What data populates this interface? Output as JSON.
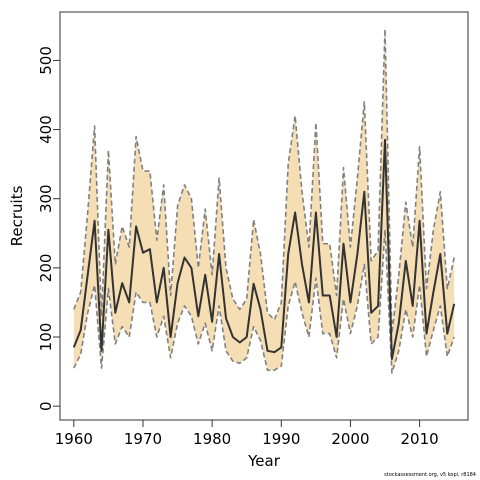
{
  "chart_data": {
    "type": "area",
    "xlabel": "Year",
    "ylabel": "Recruits",
    "xlim": [
      1958,
      2017
    ],
    "ylim": [
      -20,
      570
    ],
    "x_ticks": [
      1960,
      1970,
      1980,
      1990,
      2000,
      2010
    ],
    "y_ticks": [
      0,
      100,
      200,
      300,
      400,
      500
    ],
    "grid": false,
    "legend": "none",
    "colors": {
      "band": "#f5deb3",
      "bounds": "#808080",
      "estimate": "#333333"
    },
    "x": [
      1960,
      1961,
      1962,
      1963,
      1964,
      1965,
      1966,
      1967,
      1968,
      1969,
      1970,
      1971,
      1972,
      1973,
      1974,
      1975,
      1976,
      1977,
      1978,
      1979,
      1980,
      1981,
      1982,
      1983,
      1984,
      1985,
      1986,
      1987,
      1988,
      1989,
      1990,
      1991,
      1992,
      1993,
      1994,
      1995,
      1996,
      1997,
      1998,
      1999,
      2000,
      2001,
      2002,
      2003,
      2004,
      2005,
      2006,
      2007,
      2008,
      2009,
      2010,
      2011,
      2012,
      2013,
      2014,
      2015
    ],
    "series": [
      {
        "role": "estimate",
        "values": [
          85,
          110,
          190,
          268,
          80,
          255,
          135,
          178,
          150,
          260,
          222,
          227,
          150,
          200,
          100,
          178,
          215,
          200,
          130,
          190,
          122,
          220,
          127,
          100,
          92,
          100,
          177,
          140,
          80,
          78,
          85,
          220,
          280,
          205,
          150,
          280,
          160,
          160,
          100,
          235,
          150,
          220,
          310,
          135,
          145,
          385,
          68,
          120,
          210,
          145,
          268,
          105,
          165,
          220,
          105,
          148
        ]
      },
      {
        "role": "upper",
        "values": [
          140,
          165,
          280,
          405,
          130,
          370,
          205,
          260,
          230,
          390,
          340,
          340,
          240,
          320,
          160,
          290,
          320,
          300,
          200,
          285,
          190,
          330,
          200,
          155,
          140,
          155,
          270,
          220,
          135,
          125,
          150,
          350,
          420,
          310,
          230,
          410,
          235,
          235,
          160,
          345,
          230,
          330,
          440,
          210,
          225,
          545,
          105,
          190,
          295,
          230,
          375,
          170,
          255,
          310,
          170,
          215
        ]
      },
      {
        "role": "lower",
        "values": [
          55,
          75,
          135,
          175,
          55,
          170,
          90,
          115,
          100,
          165,
          150,
          150,
          100,
          130,
          70,
          120,
          145,
          130,
          90,
          120,
          80,
          145,
          80,
          65,
          62,
          70,
          115,
          95,
          52,
          52,
          58,
          145,
          180,
          135,
          100,
          185,
          105,
          105,
          70,
          155,
          105,
          145,
          205,
          90,
          100,
          255,
          48,
          80,
          140,
          100,
          175,
          72,
          110,
          145,
          72,
          100
        ]
      }
    ]
  },
  "footer": {
    "credit": "stockassessment.org, v5 kopi, r8184"
  }
}
